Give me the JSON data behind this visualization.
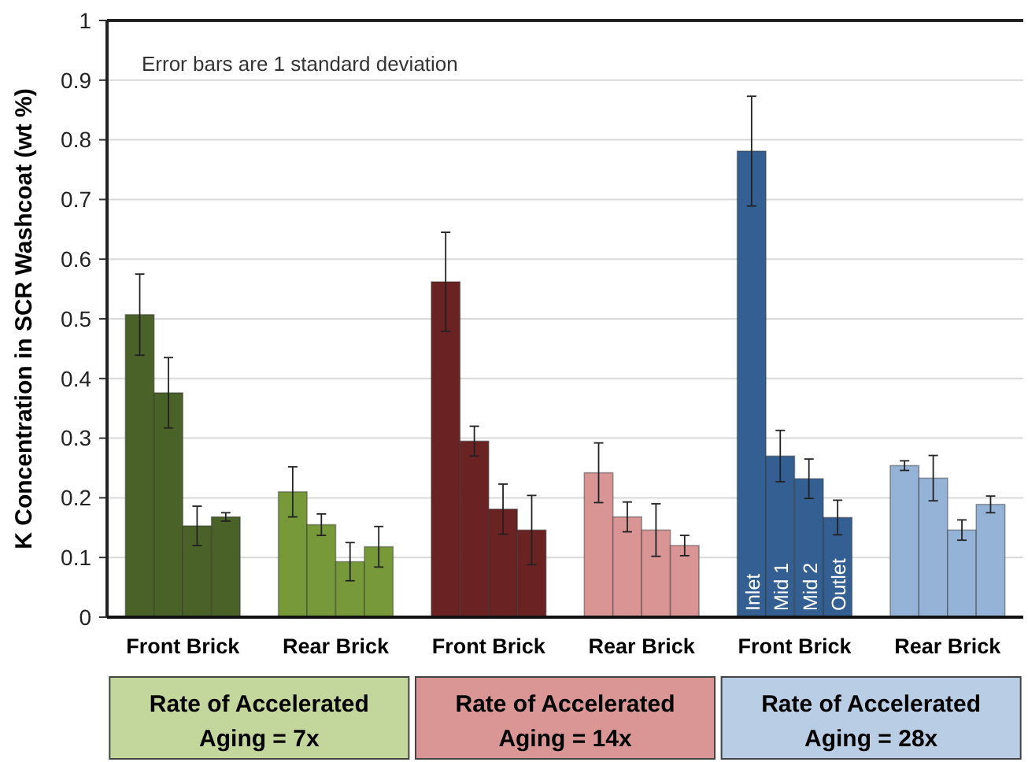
{
  "chart_data": {
    "type": "bar",
    "ylabel": "K Concentration in SCR Washcoat (wt %)",
    "categories": [
      "Front Brick",
      "Rear Brick",
      "Front Brick",
      "Rear Brick",
      "Front Brick",
      "Rear Brick"
    ],
    "series": [
      {
        "name": "Inlet",
        "colors": [
          "#4a6127",
          "#77993a",
          "#6b2222",
          "#d99494",
          "#345f92",
          "#95b3d7"
        ],
        "values": [
          0.507,
          0.21,
          0.562,
          0.242,
          0.781,
          0.254
        ],
        "errors": [
          0.068,
          0.042,
          0.083,
          0.05,
          0.092,
          0.008
        ]
      },
      {
        "name": "Mid 1",
        "colors": [
          "#4a6127",
          "#77993a",
          "#6b2222",
          "#d99494",
          "#345f92",
          "#95b3d7"
        ],
        "values": [
          0.376,
          0.155,
          0.295,
          0.168,
          0.27,
          0.233
        ],
        "errors": [
          0.059,
          0.018,
          0.025,
          0.025,
          0.043,
          0.038
        ]
      },
      {
        "name": "Mid 2",
        "colors": [
          "#4a6127",
          "#77993a",
          "#6b2222",
          "#d99494",
          "#345f92",
          "#95b3d7"
        ],
        "values": [
          0.153,
          0.093,
          0.181,
          0.146,
          0.232,
          0.146
        ],
        "errors": [
          0.033,
          0.032,
          0.042,
          0.044,
          0.033,
          0.017
        ]
      },
      {
        "name": "Outlet",
        "colors": [
          "#4a6127",
          "#77993a",
          "#6b2222",
          "#d99494",
          "#345f92",
          "#95b3d7"
        ],
        "values": [
          0.168,
          0.118,
          0.146,
          0.12,
          0.167,
          0.189
        ],
        "errors": [
          0.007,
          0.034,
          0.058,
          0.017,
          0.029,
          0.014
        ]
      }
    ],
    "ylim": [
      0,
      1
    ],
    "yticks": [
      0,
      0.1,
      0.2,
      0.3,
      0.4,
      0.5,
      0.6,
      0.7,
      0.8,
      0.9,
      1
    ],
    "grid": "y",
    "annotations": [
      "Error bars are 1 standard deviation",
      "Rate of Accelerated Aging = 7x",
      "Rate of Accelerated Aging = 14x",
      "Rate of Accelerated Aging = 28x"
    ]
  }
}
